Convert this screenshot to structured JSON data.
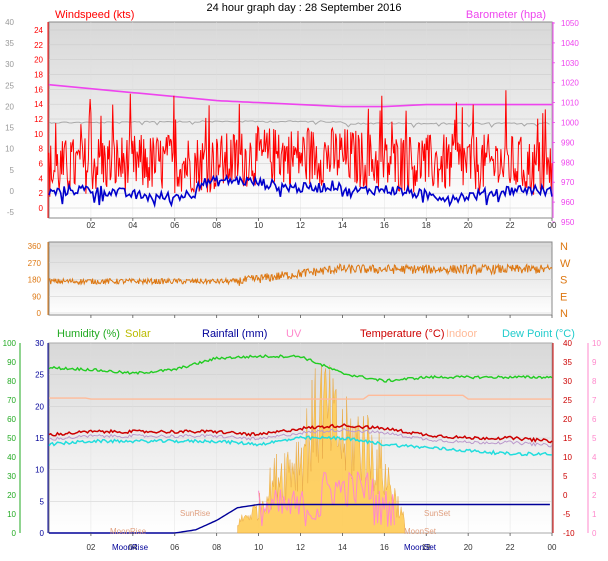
{
  "title": "24 hour graph day : 28 September 2016",
  "colors": {
    "wind": "#ff0000",
    "gust": "#0000cc",
    "baro": "#ee44ee",
    "grey": "#a8a8a8",
    "dir": "#dd7711",
    "humidity": "#22cc22",
    "solar": "#bbbb00",
    "rain": "#000099",
    "uv": "#ff88cc",
    "temp": "#cc0000",
    "indoor": "#ffbb99",
    "dew": "#22dddd",
    "solarFill": "#ffcc55",
    "panelAxis": "#888888"
  },
  "top": {
    "left_label": "Windspeed (kts)",
    "right_label": "Barometer (hpa)",
    "outer_ticks": [
      "40",
      "35",
      "30",
      "25",
      "20",
      "15",
      "10",
      "5",
      "0",
      "-5"
    ],
    "inner_ticks": [
      "24",
      "22",
      "20",
      "18",
      "16",
      "14",
      "12",
      "10",
      "8",
      "6",
      "4",
      "2",
      "0"
    ],
    "right_ticks": [
      "1050",
      "1040",
      "1030",
      "1020",
      "1010",
      "1000",
      "990",
      "980",
      "970",
      "960",
      "950"
    ]
  },
  "middle": {
    "left_ticks": [
      "360",
      "270",
      "180",
      "90",
      "0"
    ],
    "right_ticks": [
      "N",
      "W",
      "S",
      "E",
      "N"
    ]
  },
  "bottom": {
    "labels": {
      "humidity": "Humidity (%)",
      "solar": "Solar",
      "rain": "Rainfall (mm)",
      "uv": "UV",
      "temp": "Temperature (°C)",
      "indoor": "Indoor",
      "dew": "Dew Point (°C)"
    },
    "outer_ticks": [
      "100",
      "90",
      "80",
      "70",
      "60",
      "50",
      "40",
      "30",
      "20",
      "10",
      "0"
    ],
    "inner_ticks": [
      "30",
      "25",
      "20",
      "15",
      "10",
      "5",
      "0"
    ],
    "right_temp_ticks": [
      "40",
      "35",
      "30",
      "25",
      "20",
      "15",
      "10",
      "5",
      "0",
      "-5",
      "-10"
    ],
    "right_uv_ticks": [
      "10",
      "9",
      "8",
      "7",
      "6",
      "5",
      "4",
      "3",
      "2",
      "1",
      "0"
    ],
    "annotations": {
      "sunrise": "SunRise",
      "sunset": "SunSet",
      "moonrise": "MoonRise",
      "moonset": "MoonSet"
    }
  },
  "x_ticks": [
    "02",
    "04",
    "06",
    "08",
    "10",
    "12",
    "14",
    "16",
    "18",
    "20",
    "22",
    "00"
  ],
  "chart_data": {
    "type": "line",
    "x_unit": "hour of day",
    "series": [
      {
        "name": "Windspeed (kts)",
        "x": [
          0,
          2,
          4,
          6,
          8,
          10,
          12,
          14,
          16,
          18,
          20,
          22,
          24
        ],
        "values": [
          5,
          6,
          6,
          6,
          6,
          7,
          7,
          7,
          6,
          6,
          6,
          6,
          5
        ]
      },
      {
        "name": "Barometer (hpa)",
        "x": [
          0,
          2,
          4,
          6,
          8,
          10,
          12,
          14,
          16,
          18,
          20,
          22,
          24
        ],
        "values": [
          1019,
          1017,
          1015,
          1013,
          1011,
          1010,
          1009,
          1008,
          1008,
          1009,
          1009,
          1009,
          1009
        ]
      },
      {
        "name": "Humidity (%)",
        "x": [
          0,
          2,
          4,
          6,
          8,
          10,
          12,
          14,
          16,
          18,
          20,
          22,
          24
        ],
        "values": [
          87,
          86,
          84,
          86,
          92,
          93,
          93,
          84,
          80,
          82,
          82,
          82,
          82
        ]
      },
      {
        "name": "Temperature (°C)",
        "x": [
          0,
          2,
          4,
          6,
          8,
          10,
          12,
          14,
          16,
          18,
          20,
          22,
          24
        ],
        "values": [
          15.5,
          16,
          16,
          16,
          16,
          15.5,
          16.5,
          17,
          16.5,
          15.5,
          15,
          15,
          14.5
        ]
      },
      {
        "name": "Dew Point (°C)",
        "x": [
          0,
          2,
          4,
          6,
          8,
          10,
          12,
          14,
          16,
          18,
          20,
          22,
          24
        ],
        "values": [
          14,
          14.5,
          14.5,
          14.5,
          14.5,
          14,
          15,
          15,
          14,
          13.5,
          13,
          12.5,
          12.5
        ]
      },
      {
        "name": "Rainfall (mm)",
        "x": [
          0,
          6,
          7,
          8,
          9,
          10,
          12,
          14,
          16,
          18,
          20,
          22,
          24
        ],
        "values": [
          0,
          0,
          0.5,
          2,
          4,
          4.5,
          4.5,
          4.5,
          4.5,
          4.5,
          4.5,
          4.5,
          4.5
        ]
      },
      {
        "name": "Solar",
        "x": [
          9,
          10,
          11,
          12,
          13,
          14,
          15,
          16,
          17
        ],
        "values": [
          2,
          5,
          12,
          15,
          25,
          18,
          18,
          12,
          2
        ]
      }
    ]
  }
}
